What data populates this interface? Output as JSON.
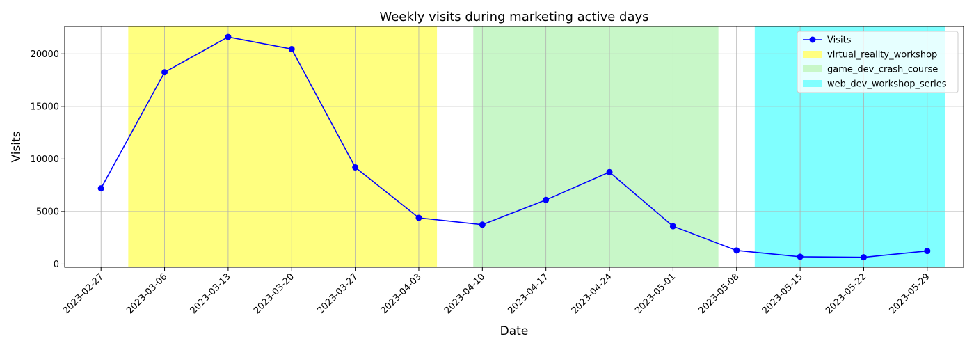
{
  "chart_data": {
    "type": "line",
    "title": "Weekly visits during marketing active days",
    "xlabel": "Date",
    "ylabel": "Visits",
    "x": [
      "2023-02-27",
      "2023-03-06",
      "2023-03-13",
      "2023-03-20",
      "2023-03-27",
      "2023-04-03",
      "2023-04-10",
      "2023-04-17",
      "2023-04-24",
      "2023-05-01",
      "2023-05-08",
      "2023-05-15",
      "2023-05-22",
      "2023-05-29"
    ],
    "xlim": [
      "2023-02-23",
      "2023-06-02"
    ],
    "ylim": [
      -300,
      22600
    ],
    "yticks": [
      0,
      5000,
      10000,
      15000,
      20000
    ],
    "grid": true,
    "legend_position": "top-right",
    "series": [
      {
        "name": "Visits",
        "color": "#0000ff",
        "marker": "circle",
        "values": [
          7200,
          18250,
          21600,
          20450,
          9200,
          4400,
          3750,
          6100,
          8750,
          3600,
          1300,
          700,
          650,
          1250
        ]
      }
    ],
    "spans": [
      {
        "name": "virtual_reality_workshop",
        "start": "2023-03-02",
        "end": "2023-04-05",
        "color": "#ffff80"
      },
      {
        "name": "game_dev_crash_course",
        "start": "2023-04-09",
        "end": "2023-05-06",
        "color": "#c8f7c8"
      },
      {
        "name": "web_dev_workshop_series",
        "start": "2023-05-10",
        "end": "2023-05-31",
        "color": "#80ffff"
      }
    ]
  }
}
